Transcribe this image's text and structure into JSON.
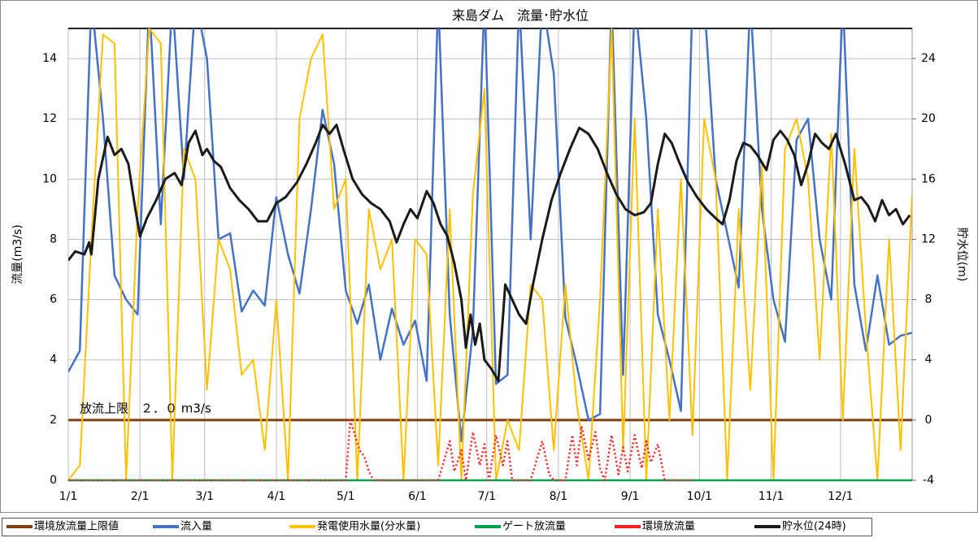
{
  "chart_data": {
    "type": "line",
    "title": "来島ダム　流量･貯水位",
    "y_label": "流量(m3/s)",
    "y2_label": "貯水位(m)",
    "annotation": "放流上限　２．０ m3/s",
    "xlim": [
      0,
      365
    ],
    "xticks": [
      {
        "value": 0,
        "label": "1/1"
      },
      {
        "value": 31,
        "label": "2/1"
      },
      {
        "value": 59,
        "label": "3/1"
      },
      {
        "value": 90,
        "label": "4/1"
      },
      {
        "value": 120,
        "label": "5/1"
      },
      {
        "value": 151,
        "label": "6/1"
      },
      {
        "value": 181,
        "label": "7/1"
      },
      {
        "value": 212,
        "label": "8/1"
      },
      {
        "value": 243,
        "label": "9/1"
      },
      {
        "value": 273,
        "label": "10/1"
      },
      {
        "value": 304,
        "label": "11/1"
      },
      {
        "value": 334,
        "label": "12/1"
      }
    ],
    "ylim": [
      0,
      15
    ],
    "yticks": [
      0,
      2,
      4,
      6,
      8,
      10,
      12,
      14
    ],
    "y2lim": [
      -4,
      26
    ],
    "y2ticks": [
      -4,
      0,
      4,
      8,
      12,
      16,
      20,
      24
    ],
    "grid": true,
    "legend": "bottom",
    "series": [
      {
        "name": "環境放流量上限値",
        "color": "#7f3f10",
        "x": [
          0,
          365
        ],
        "values": [
          2,
          2
        ]
      },
      {
        "name": "流入量",
        "color": "#4472c4",
        "x": [
          0,
          5,
          10,
          15,
          20,
          25,
          30,
          35,
          40,
          45,
          50,
          55,
          60,
          65,
          70,
          75,
          80,
          85,
          90,
          95,
          100,
          105,
          110,
          115,
          120,
          125,
          130,
          135,
          140,
          145,
          150,
          155,
          160,
          165,
          170,
          175,
          180,
          185,
          190,
          195,
          200,
          205,
          210,
          215,
          220,
          225,
          230,
          235,
          240,
          245,
          250,
          255,
          260,
          265,
          270,
          275,
          280,
          285,
          290,
          295,
          300,
          305,
          310,
          315,
          320,
          325,
          330,
          335,
          340,
          345,
          350,
          355,
          360,
          365
        ],
        "values": [
          3.6,
          4.3,
          16,
          12,
          6.8,
          6,
          5.5,
          16,
          8.5,
          16,
          10,
          16,
          14,
          8,
          8.2,
          5.6,
          6.3,
          5.8,
          9.4,
          7.5,
          6.2,
          9,
          12.3,
          10.5,
          6.3,
          5.2,
          6.5,
          4,
          5.7,
          4.5,
          5.3,
          3.3,
          16,
          5.5,
          1.3,
          5,
          16,
          3.2,
          3.5,
          16,
          8,
          16,
          13.5,
          5.4,
          3.8,
          2,
          2.2,
          16,
          3.5,
          16,
          12,
          5.5,
          4,
          2.3,
          16,
          16,
          10,
          8.2,
          6.4,
          16,
          9,
          6,
          4.6,
          11.3,
          12,
          8,
          6,
          16,
          6.5,
          4.3,
          6.8,
          4.5,
          4.8,
          4.9
        ]
      },
      {
        "name": "発電使用水量(分水量)",
        "color": "#ffc000",
        "x": [
          0,
          5,
          10,
          15,
          20,
          25,
          30,
          35,
          40,
          45,
          50,
          55,
          60,
          65,
          70,
          75,
          80,
          85,
          90,
          95,
          100,
          105,
          110,
          115,
          120,
          125,
          130,
          135,
          140,
          145,
          150,
          155,
          160,
          165,
          170,
          175,
          180,
          185,
          190,
          195,
          200,
          205,
          210,
          215,
          220,
          225,
          230,
          235,
          240,
          245,
          250,
          255,
          260,
          265,
          270,
          275,
          280,
          285,
          290,
          295,
          300,
          305,
          310,
          315,
          320,
          325,
          330,
          335,
          340,
          345,
          350,
          355,
          360,
          365
        ],
        "values": [
          0,
          0.5,
          8,
          14.8,
          14.5,
          0,
          9,
          15,
          14.5,
          0,
          11,
          10,
          3,
          8,
          7,
          3.5,
          4,
          1,
          6,
          0,
          12,
          14,
          14.8,
          9,
          10,
          0,
          9,
          7,
          8,
          0,
          8,
          7.5,
          0.5,
          9,
          0,
          9.5,
          13,
          0,
          2,
          1,
          6.5,
          6,
          1,
          6.5,
          2.5,
          0,
          6,
          15,
          1,
          12,
          0,
          9,
          2,
          10,
          1.5,
          12,
          10,
          0,
          9,
          3,
          10.5,
          0,
          11,
          12,
          10,
          4,
          11.5,
          2,
          11,
          5,
          0,
          8,
          1,
          9.5
        ]
      },
      {
        "name": "ゲート放流量",
        "color": "#00a050",
        "x": [
          0,
          365
        ],
        "values": [
          0,
          0
        ]
      },
      {
        "name": "環境放流量",
        "color": "#ff2020",
        "x": [
          0,
          90,
          120,
          122,
          124,
          126,
          128,
          130,
          132,
          140,
          150,
          160,
          165,
          167,
          170,
          172,
          175,
          178,
          180,
          182,
          185,
          188,
          190,
          192,
          195,
          198,
          200,
          205,
          208,
          210,
          212,
          215,
          218,
          220,
          222,
          225,
          228,
          230,
          232,
          235,
          238,
          240,
          242,
          245,
          248,
          250,
          252,
          255,
          258,
          262,
          265,
          270
        ],
        "values": [
          0,
          0,
          0,
          2,
          1.5,
          1,
          0.8,
          0.3,
          0,
          0,
          0,
          0,
          1.3,
          0.3,
          1,
          0,
          1.6,
          0.5,
          1.2,
          0,
          1.5,
          0.5,
          1.3,
          0,
          0,
          0,
          0,
          1.3,
          0.2,
          0,
          0,
          0,
          1.5,
          0.5,
          1.8,
          0.7,
          1.6,
          0.4,
          0,
          1.5,
          0.2,
          1.1,
          0.3,
          1.5,
          0.4,
          1.3,
          0.6,
          1.2,
          0,
          0,
          0,
          0
        ]
      },
      {
        "name": "貯水位(24時)",
        "color": "#1a1a1a",
        "axis": "y2",
        "x": [
          0,
          3,
          7,
          9,
          10,
          13,
          17,
          20,
          23,
          26,
          29,
          31,
          34,
          38,
          42,
          46,
          49,
          52,
          55,
          58,
          60,
          63,
          66,
          70,
          74,
          78,
          82,
          86,
          90,
          94,
          99,
          103,
          107,
          110,
          113,
          116,
          119,
          123,
          127,
          131,
          135,
          139,
          142,
          145,
          148,
          151,
          155,
          158,
          161,
          164,
          167,
          170,
          172,
          174,
          176,
          178,
          180,
          183,
          186,
          189,
          192,
          195,
          198,
          201,
          205,
          209,
          213,
          217,
          221,
          225,
          229,
          233,
          237,
          241,
          245,
          249,
          252,
          255,
          258,
          261,
          264,
          268,
          272,
          276,
          280,
          283,
          286,
          289,
          292,
          295,
          298,
          302,
          305,
          308,
          311,
          314,
          317,
          320,
          323,
          326,
          329,
          332,
          336,
          340,
          343,
          346,
          349,
          352,
          355,
          358,
          361,
          364
        ],
        "values": [
          10.6,
          11.2,
          11,
          11.8,
          11,
          16,
          18.8,
          17.6,
          18,
          17,
          14,
          12.2,
          13.4,
          14.6,
          16,
          16.4,
          15.6,
          18.4,
          19.2,
          17.6,
          18,
          17.2,
          16.8,
          15.4,
          14.6,
          14,
          13.2,
          13.2,
          14.4,
          14.8,
          15.8,
          17,
          18.4,
          19.6,
          19,
          19.6,
          18,
          16,
          15,
          14.4,
          14,
          13.2,
          11.8,
          13,
          14,
          13.4,
          15.2,
          14.4,
          13,
          12.2,
          10.4,
          8,
          4.8,
          7,
          5,
          6.4,
          4,
          3.4,
          2.6,
          9,
          8,
          7,
          6.4,
          9,
          12,
          14.6,
          16.4,
          18,
          19.4,
          19,
          18,
          16.4,
          15,
          14,
          13.6,
          13.8,
          14.4,
          17,
          19,
          18.4,
          17.2,
          15.8,
          14.8,
          14,
          13.4,
          13,
          14.6,
          17.2,
          18.4,
          18.2,
          17.6,
          16.6,
          18.6,
          19.2,
          18.6,
          17.6,
          15.6,
          17,
          19,
          18.4,
          18,
          19,
          17,
          14.6,
          14.8,
          14.2,
          13.2,
          14.6,
          13.6,
          14,
          13,
          13.6
        ]
      }
    ]
  }
}
